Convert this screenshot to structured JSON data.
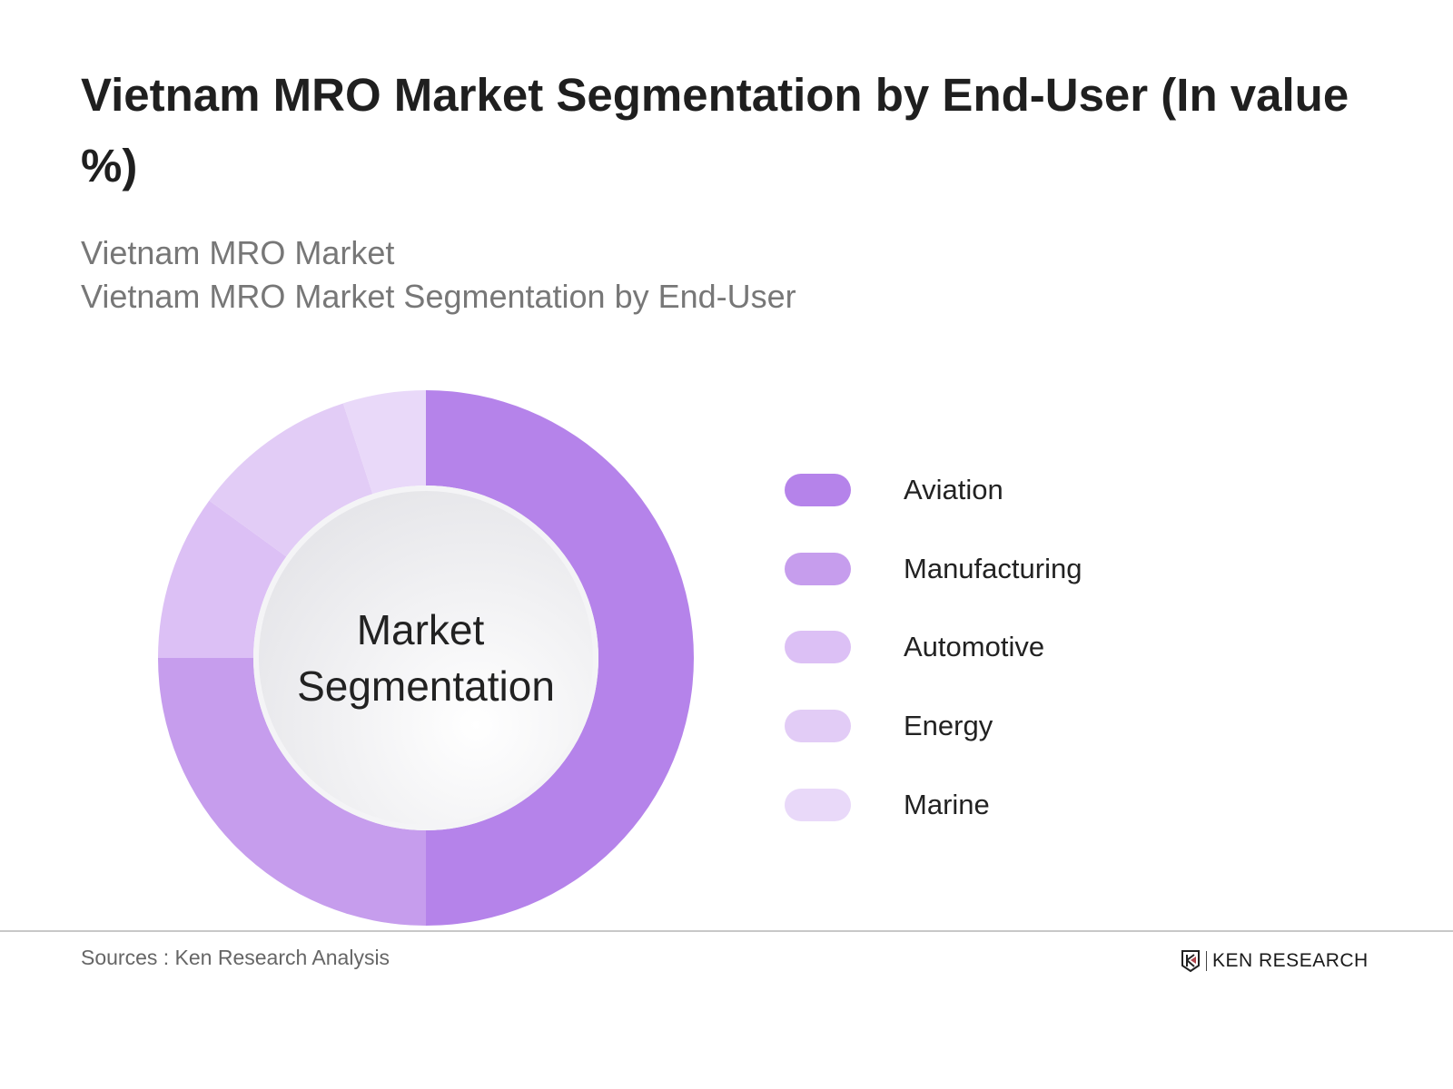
{
  "title": "Vietnam MRO Market Segmentation by End-User (In value %)",
  "subtitle_line1": "Vietnam MRO Market",
  "subtitle_line2": "Vietnam MRO Market Segmentation by End-User",
  "chart_data": {
    "type": "pie",
    "style": "donut",
    "center_label": [
      "Market",
      "Segmentation"
    ],
    "categories": [
      "Aviation",
      "Manufacturing",
      "Automotive",
      "Energy",
      "Marine"
    ],
    "values": [
      50,
      25,
      10,
      10,
      5
    ],
    "colors": [
      "#b583ea",
      "#c69ded",
      "#dcc0f5",
      "#e2ccf6",
      "#e9d9f9"
    ],
    "legend_position": "right"
  },
  "footer": {
    "source": "Sources : Ken Research Analysis",
    "logo_text": "KEN RESEARCH"
  }
}
